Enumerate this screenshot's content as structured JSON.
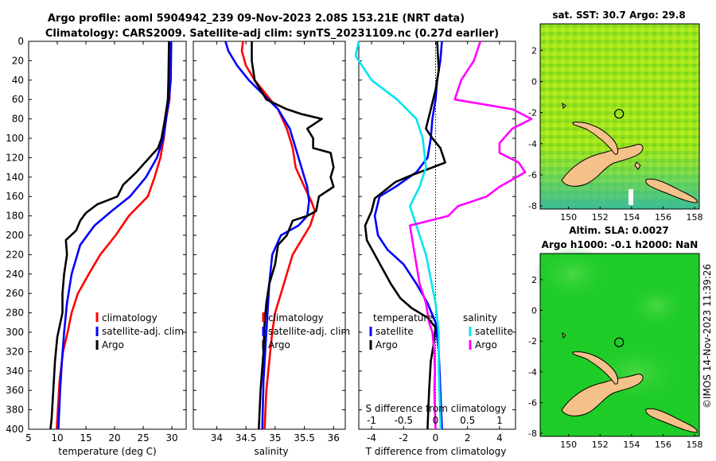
{
  "header": {
    "line1": "Argo profile: aoml 5904942_239 09-Nov-2023 2.08S 153.21E (NRT data)",
    "line2": "Climatology: CARS2009. Satellite-adj clim: synTS_20231109.nc (0.27d earlier)"
  },
  "side_label": "©IMOS 14-Nov-2023 11:39:26",
  "colors": {
    "climatology": "#ff0000",
    "satellite": "#0000ff",
    "argo": "#000000",
    "sat_s": "#00e5ee",
    "argo_s": "#ff00ff"
  },
  "chart_data": [
    {
      "type": "line",
      "id": "temperature",
      "xlabel": "temperature (deg C)",
      "ylabel": "",
      "xlim": [
        5,
        32.5
      ],
      "ylim": [
        400,
        0
      ],
      "xticks": [
        5,
        10,
        15,
        20,
        25,
        30
      ],
      "yticks": [
        0,
        20,
        40,
        60,
        80,
        100,
        120,
        140,
        160,
        180,
        200,
        220,
        240,
        260,
        280,
        300,
        320,
        340,
        360,
        380,
        400
      ],
      "legend": [
        "climatology",
        "satellite-adj. clim",
        "Argo"
      ],
      "series": [
        {
          "name": "climatology",
          "color": "#ff0000",
          "points": [
            [
              29.8,
              0
            ],
            [
              29.7,
              40
            ],
            [
              29.6,
              60
            ],
            [
              29.0,
              80
            ],
            [
              28.6,
              100
            ],
            [
              28.0,
              120
            ],
            [
              27.0,
              140
            ],
            [
              25.8,
              160
            ],
            [
              22.5,
              180
            ],
            [
              20.2,
              200
            ],
            [
              17.5,
              220
            ],
            [
              15.5,
              240
            ],
            [
              13.6,
              260
            ],
            [
              12.5,
              280
            ],
            [
              11.8,
              300
            ],
            [
              11.0,
              320
            ],
            [
              10.4,
              350
            ],
            [
              10.1,
              380
            ],
            [
              9.9,
              400
            ]
          ]
        },
        {
          "name": "satellite-adj. clim",
          "color": "#0000ff",
          "points": [
            [
              29.9,
              0
            ],
            [
              29.8,
              40
            ],
            [
              29.5,
              60
            ],
            [
              29.0,
              80
            ],
            [
              28.5,
              100
            ],
            [
              27.4,
              120
            ],
            [
              25.5,
              140
            ],
            [
              22.7,
              160
            ],
            [
              19.5,
              175
            ],
            [
              16.5,
              190
            ],
            [
              14.0,
              210
            ],
            [
              12.5,
              240
            ],
            [
              11.7,
              270
            ],
            [
              11.2,
              300
            ],
            [
              10.8,
              330
            ],
            [
              10.5,
              360
            ],
            [
              10.2,
              400
            ]
          ]
        },
        {
          "name": "Argo",
          "color": "#000000",
          "points": [
            [
              29.5,
              0
            ],
            [
              29.4,
              40
            ],
            [
              29.3,
              60
            ],
            [
              28.8,
              80
            ],
            [
              28.2,
              100
            ],
            [
              27.6,
              110
            ],
            [
              25.3,
              125
            ],
            [
              23.8,
              135
            ],
            [
              21.5,
              148
            ],
            [
              20.5,
              160
            ],
            [
              17.0,
              168
            ],
            [
              15.0,
              177
            ],
            [
              14.0,
              185
            ],
            [
              13.3,
              195
            ],
            [
              11.5,
              205
            ],
            [
              11.7,
              220
            ],
            [
              11.2,
              240
            ],
            [
              10.9,
              260
            ],
            [
              10.9,
              280
            ],
            [
              10.0,
              305
            ],
            [
              9.6,
              330
            ],
            [
              9.3,
              360
            ],
            [
              9.0,
              390
            ],
            [
              8.8,
              400
            ]
          ]
        }
      ]
    },
    {
      "type": "line",
      "id": "salinity",
      "xlabel": "salinity",
      "ylabel": "",
      "xlim": [
        33.6,
        36.2
      ],
      "ylim": [
        400,
        0
      ],
      "xticks": [
        34,
        34.5,
        35,
        35.5,
        36
      ],
      "legend": [
        "climatology",
        "satellite-adj. clim",
        "Argo"
      ],
      "series": [
        {
          "name": "climatology",
          "color": "#ff0000",
          "points": [
            [
              34.45,
              0
            ],
            [
              34.43,
              10
            ],
            [
              34.5,
              25
            ],
            [
              34.65,
              40
            ],
            [
              34.85,
              55
            ],
            [
              35.05,
              70
            ],
            [
              35.2,
              90
            ],
            [
              35.3,
              110
            ],
            [
              35.35,
              130
            ],
            [
              35.5,
              150
            ],
            [
              35.62,
              165
            ],
            [
              35.68,
              175
            ],
            [
              35.6,
              190
            ],
            [
              35.45,
              205
            ],
            [
              35.3,
              220
            ],
            [
              35.2,
              240
            ],
            [
              35.1,
              260
            ],
            [
              35.0,
              280
            ],
            [
              34.95,
              300
            ],
            [
              34.9,
              330
            ],
            [
              34.85,
              360
            ],
            [
              34.82,
              400
            ]
          ]
        },
        {
          "name": "satellite-adj. clim",
          "color": "#0000ff",
          "points": [
            [
              34.15,
              0
            ],
            [
              34.2,
              10
            ],
            [
              34.35,
              25
            ],
            [
              34.55,
              40
            ],
            [
              34.8,
              55
            ],
            [
              35.05,
              70
            ],
            [
              35.25,
              90
            ],
            [
              35.35,
              110
            ],
            [
              35.45,
              130
            ],
            [
              35.55,
              150
            ],
            [
              35.58,
              165
            ],
            [
              35.55,
              180
            ],
            [
              35.4,
              190
            ],
            [
              35.1,
              200
            ],
            [
              34.95,
              220
            ],
            [
              34.9,
              250
            ],
            [
              34.85,
              300
            ],
            [
              34.8,
              350
            ],
            [
              34.78,
              400
            ]
          ]
        },
        {
          "name": "Argo",
          "color": "#000000",
          "points": [
            [
              34.6,
              0
            ],
            [
              34.6,
              20
            ],
            [
              34.65,
              40
            ],
            [
              34.85,
              60
            ],
            [
              35.2,
              70
            ],
            [
              35.45,
              75
            ],
            [
              35.8,
              80
            ],
            [
              35.55,
              90
            ],
            [
              35.65,
              100
            ],
            [
              35.65,
              110
            ],
            [
              35.95,
              115
            ],
            [
              36.0,
              130
            ],
            [
              35.95,
              140
            ],
            [
              36.0,
              150
            ],
            [
              35.75,
              160
            ],
            [
              35.7,
              175
            ],
            [
              35.55,
              180
            ],
            [
              35.3,
              185
            ],
            [
              35.2,
              200
            ],
            [
              35.05,
              210
            ],
            [
              35.0,
              230
            ],
            [
              34.9,
              250
            ],
            [
              34.85,
              270
            ],
            [
              34.82,
              290
            ],
            [
              34.8,
              320
            ],
            [
              34.75,
              360
            ],
            [
              34.72,
              400
            ]
          ]
        }
      ]
    },
    {
      "type": "line",
      "id": "difference",
      "xlabel": "T difference from climatology",
      "ylabel": "",
      "xlim": [
        -4.8,
        5
      ],
      "ylim": [
        400,
        0
      ],
      "xticks": [
        -4,
        -2,
        0,
        2,
        4
      ],
      "top_xlabel": "S difference from climatology",
      "top_xticks": [
        "-1",
        "-0.5",
        "0",
        "0.5",
        "1"
      ],
      "legend_headers": [
        "temperature",
        "salinity"
      ],
      "legend": [
        "satellite",
        "Argo",
        "satellite",
        "Argo"
      ],
      "series": [
        {
          "name": "T satellite",
          "color": "#0000ff",
          "points": [
            [
              0.4,
              0
            ],
            [
              0.3,
              20
            ],
            [
              0.1,
              40
            ],
            [
              0.0,
              60
            ],
            [
              -0.2,
              80
            ],
            [
              -0.3,
              100
            ],
            [
              -0.5,
              120
            ],
            [
              -1.2,
              135
            ],
            [
              -2.5,
              150
            ],
            [
              -3.5,
              160
            ],
            [
              -3.8,
              180
            ],
            [
              -3.6,
              200
            ],
            [
              -3.0,
              215
            ],
            [
              -2.0,
              230
            ],
            [
              -1.2,
              250
            ],
            [
              -0.5,
              270
            ],
            [
              0.0,
              290
            ],
            [
              0.2,
              320
            ],
            [
              0.3,
              360
            ],
            [
              0.4,
              400
            ]
          ]
        },
        {
          "name": "T Argo",
          "color": "#000000",
          "points": [
            [
              0.1,
              0
            ],
            [
              0.2,
              30
            ],
            [
              0.0,
              50
            ],
            [
              -0.3,
              70
            ],
            [
              -0.6,
              90
            ],
            [
              -0.2,
              100
            ],
            [
              0.3,
              110
            ],
            [
              0.6,
              125
            ],
            [
              -0.5,
              132
            ],
            [
              -1.5,
              138
            ],
            [
              -2.5,
              145
            ],
            [
              -3.8,
              162
            ],
            [
              -4.0,
              175
            ],
            [
              -4.4,
              190
            ],
            [
              -4.3,
              205
            ],
            [
              -3.8,
              220
            ],
            [
              -3.3,
              235
            ],
            [
              -2.8,
              250
            ],
            [
              -2.2,
              265
            ],
            [
              -1.5,
              275
            ],
            [
              -0.5,
              285
            ],
            [
              0.0,
              295
            ],
            [
              -0.1,
              310
            ],
            [
              -0.3,
              330
            ],
            [
              -0.4,
              360
            ],
            [
              -0.5,
              400
            ]
          ]
        },
        {
          "name": "S satellite",
          "color": "#00e5ee",
          "points": [
            [
              -1.2,
              0
            ],
            [
              -1.25,
              15
            ],
            [
              -1.0,
              40
            ],
            [
              -0.6,
              60
            ],
            [
              -0.3,
              80
            ],
            [
              -0.2,
              100
            ],
            [
              -0.15,
              130
            ],
            [
              -0.25,
              150
            ],
            [
              -0.4,
              170
            ],
            [
              -0.3,
              190
            ],
            [
              -0.15,
              220
            ],
            [
              0.0,
              270
            ],
            [
              0.05,
              300
            ],
            [
              0.05,
              340
            ],
            [
              0.08,
              400
            ]
          ]
        },
        {
          "name": "S Argo",
          "color": "#ff00ff",
          "points": [
            [
              0.7,
              0
            ],
            [
              0.6,
              20
            ],
            [
              0.4,
              40
            ],
            [
              0.3,
              60
            ],
            [
              1.2,
              70
            ],
            [
              1.5,
              80
            ],
            [
              1.2,
              90
            ],
            [
              1.0,
              105
            ],
            [
              1.0,
              115
            ],
            [
              1.3,
              125
            ],
            [
              1.4,
              135
            ],
            [
              1.0,
              150
            ],
            [
              0.8,
              160
            ],
            [
              0.35,
              170
            ],
            [
              0.2,
              180
            ],
            [
              -0.4,
              190
            ],
            [
              -0.35,
              210
            ],
            [
              -0.3,
              230
            ],
            [
              -0.25,
              250
            ],
            [
              -0.2,
              260
            ],
            [
              -0.15,
              270
            ],
            [
              -0.1,
              290
            ],
            [
              -0.05,
              300
            ],
            [
              -0.02,
              320
            ],
            [
              -0.01,
              340
            ],
            [
              -0.02,
              360
            ],
            [
              0.0,
              400
            ]
          ]
        }
      ]
    }
  ],
  "maps": [
    {
      "id": "sst_map",
      "title": "sat. SST: 30.7 Argo: 29.8",
      "xticks": [
        150,
        152,
        154,
        156,
        158
      ],
      "yticks": [
        2,
        0,
        -2,
        -4,
        -6,
        -8
      ],
      "xlim": [
        148.2,
        158.3
      ],
      "ylim": [
        -8.2,
        3.7
      ],
      "float": [
        153.21,
        -2.08
      ]
    },
    {
      "id": "sla_map",
      "title1": "Altim. SLA: 0.0027",
      "title2": "Argo h1000: -0.1 h2000: NaN",
      "xticks": [
        150,
        152,
        154,
        156,
        158
      ],
      "yticks": [
        2,
        0,
        -2,
        -4,
        -6,
        -8
      ],
      "xlim": [
        148.2,
        158.3
      ],
      "ylim": [
        -8.2,
        3.7
      ],
      "float": [
        153.21,
        -2.08
      ]
    }
  ]
}
